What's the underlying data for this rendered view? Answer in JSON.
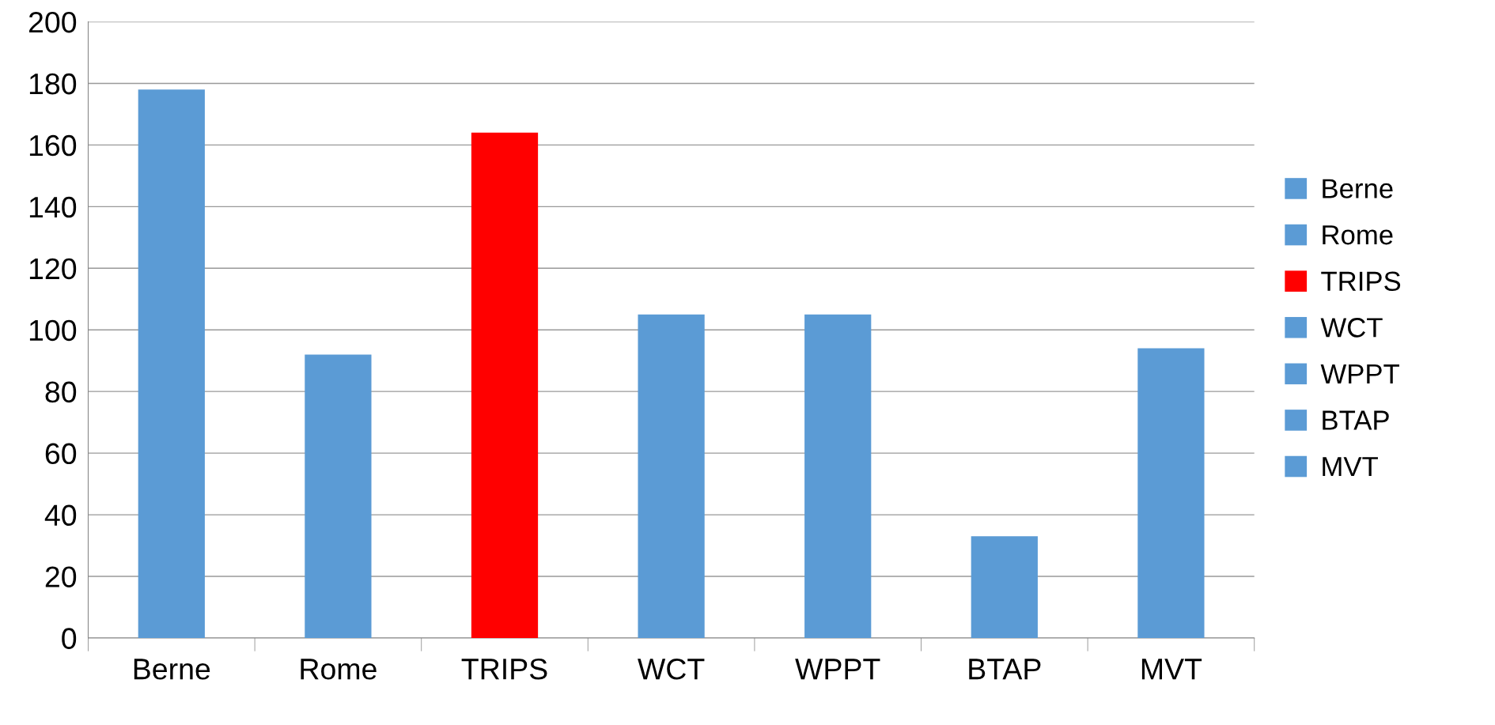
{
  "chart_data": {
    "type": "bar",
    "stacked": true,
    "categories": [
      "Berne",
      "Rome",
      "TRIPS",
      "WCT",
      "WPPT",
      "BTAP",
      "MVT"
    ],
    "series": [
      {
        "name": "Berne",
        "color": "#5b9bd5",
        "values": [
          178,
          null,
          null,
          null,
          null,
          null,
          null
        ]
      },
      {
        "name": "Rome",
        "color": "#5b9bd5",
        "values": [
          null,
          92,
          null,
          null,
          null,
          null,
          null
        ]
      },
      {
        "name": "TRIPS",
        "color": "#ff0000",
        "values": [
          null,
          null,
          164,
          null,
          null,
          null,
          null
        ]
      },
      {
        "name": "WCT",
        "color": "#5b9bd5",
        "values": [
          null,
          null,
          null,
          105,
          null,
          null,
          null
        ]
      },
      {
        "name": "WPPT",
        "color": "#5b9bd5",
        "values": [
          null,
          null,
          null,
          null,
          105,
          null,
          null
        ]
      },
      {
        "name": "BTAP",
        "color": "#5b9bd5",
        "values": [
          null,
          null,
          null,
          null,
          null,
          33,
          null
        ]
      },
      {
        "name": "MVT",
        "color": "#5b9bd5",
        "values": [
          null,
          null,
          null,
          null,
          null,
          null,
          94
        ]
      }
    ],
    "ylim": [
      0,
      200
    ],
    "yticks": [
      0,
      20,
      40,
      60,
      80,
      100,
      120,
      140,
      160,
      180,
      200
    ],
    "grid": "y",
    "legend": "right"
  }
}
